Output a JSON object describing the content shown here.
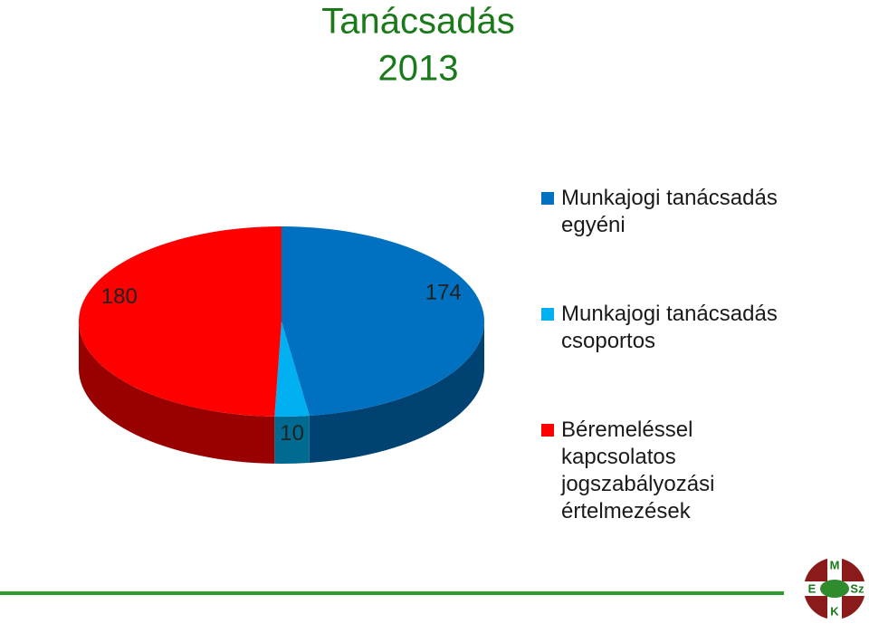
{
  "chart_data": {
    "type": "pie3d",
    "title": "Tanácsadás",
    "subtitle": "2013",
    "series": [
      {
        "name": "Munkajogi tanácsadás egyéni",
        "color": "#0070c0",
        "values": [
          174
        ]
      },
      {
        "name": "Munkajogi tanácsadás csoportos",
        "color": "#00b0f0",
        "values": [
          10
        ]
      },
      {
        "name": "Béremeléssel kapcsolatos jogszabályozási értelmezések",
        "color": "#ff0000",
        "values": [
          180
        ]
      }
    ],
    "legend": "right"
  },
  "logo": {
    "top": "M",
    "left": "E",
    "right": "Sz",
    "bottom": "K"
  }
}
